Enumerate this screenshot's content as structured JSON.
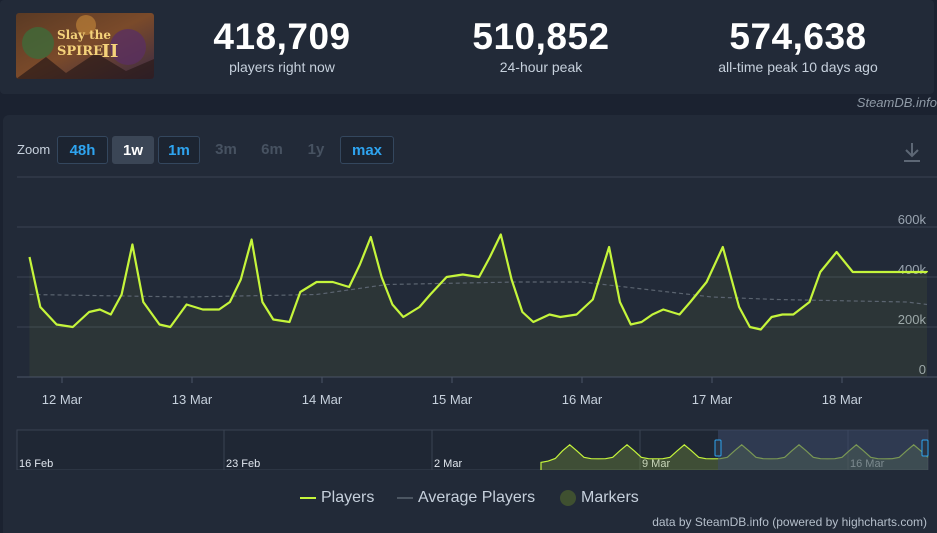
{
  "stats": [
    {
      "value": "418,709",
      "label": "players right now"
    },
    {
      "value": "510,852",
      "label": "24-hour peak"
    },
    {
      "value": "574,638",
      "label": "all-time peak 10 days ago"
    }
  ],
  "logo": {
    "line1": "Slay the",
    "line2": "SPIRE",
    "numeral": "II"
  },
  "source_credit": "SteamDB.info",
  "zoom": {
    "label": "Zoom",
    "buttons": [
      {
        "label": "48h",
        "state": "active"
      },
      {
        "label": "1w",
        "state": "selected"
      },
      {
        "label": "1m",
        "state": "active"
      },
      {
        "label": "3m",
        "state": "disabled"
      },
      {
        "label": "6m",
        "state": "disabled"
      },
      {
        "label": "1y",
        "state": "disabled"
      },
      {
        "label": "max",
        "state": "active"
      }
    ]
  },
  "download_icon": "download-icon",
  "legend": [
    {
      "label": "Players",
      "color": "#c5f53b"
    },
    {
      "label": "Average Players",
      "color": "#5b6470"
    },
    {
      "label": "Markers",
      "color": "#3f5030"
    }
  ],
  "footer_credit": "data by SteamDB.info (powered by highcharts.com)",
  "colors": {
    "players": "#c5f53b",
    "average": "#5b6470",
    "background": "#222a38",
    "navigator_selection": "#3c4a6a"
  },
  "chart_data": {
    "type": "line",
    "ylim": [
      0,
      600000
    ],
    "y_ticks": [
      "0",
      "200k",
      "400k",
      "600k"
    ],
    "x_ticks": [
      "12 Mar",
      "13 Mar",
      "14 Mar",
      "15 Mar",
      "16 Mar",
      "17 Mar",
      "18 Mar"
    ],
    "series": [
      {
        "name": "Players",
        "x": [
          "11 Mar 18:00",
          "11 Mar 20:00",
          "11 Mar 23:00",
          "12 Mar 02:00",
          "12 Mar 05:00",
          "12 Mar 07:00",
          "12 Mar 09:00",
          "12 Mar 11:00",
          "12 Mar 13:00",
          "12 Mar 15:00",
          "12 Mar 18:00",
          "12 Mar 20:00",
          "12 Mar 23:00",
          "13 Mar 02:00",
          "13 Mar 05:00",
          "13 Mar 07:00",
          "13 Mar 09:00",
          "13 Mar 11:00",
          "13 Mar 13:00",
          "13 Mar 15:00",
          "13 Mar 18:00",
          "13 Mar 20:00",
          "13 Mar 23:00",
          "14 Mar 02:00",
          "14 Mar 05:00",
          "14 Mar 07:00",
          "14 Mar 09:00",
          "14 Mar 11:00",
          "14 Mar 13:00",
          "14 Mar 15:00",
          "14 Mar 18:00",
          "14 Mar 20:00",
          "14 Mar 23:00",
          "15 Mar 02:00",
          "15 Mar 05:00",
          "15 Mar 07:00",
          "15 Mar 09:00",
          "15 Mar 11:00",
          "15 Mar 13:00",
          "15 Mar 15:00",
          "15 Mar 18:00",
          "15 Mar 20:00",
          "15 Mar 23:00",
          "16 Mar 02:00",
          "16 Mar 05:00",
          "16 Mar 07:00",
          "16 Mar 09:00",
          "16 Mar 11:00",
          "16 Mar 13:00",
          "16 Mar 15:00",
          "16 Mar 18:00",
          "16 Mar 20:00",
          "16 Mar 23:00",
          "17 Mar 02:00",
          "17 Mar 05:00",
          "17 Mar 07:00",
          "17 Mar 09:00",
          "17 Mar 11:00",
          "17 Mar 13:00",
          "17 Mar 15:00",
          "17 Mar 18:00",
          "17 Mar 20:00",
          "17 Mar 23:00",
          "18 Mar 02:00",
          "18 Mar 05:00",
          "18 Mar 07:00",
          "18 Mar 09:00",
          "18 Mar 11:00",
          "18 Mar 13:00",
          "18 Mar 15:00",
          "18 Mar 18:00",
          "18 Mar 20:00",
          "18 Mar 23:00"
        ],
        "values": [
          480000,
          280000,
          210000,
          200000,
          260000,
          270000,
          250000,
          330000,
          530000,
          300000,
          210000,
          200000,
          290000,
          270000,
          270000,
          300000,
          390000,
          550000,
          300000,
          230000,
          220000,
          340000,
          380000,
          380000,
          360000,
          450000,
          560000,
          400000,
          290000,
          240000,
          280000,
          330000,
          400000,
          410000,
          400000,
          480000,
          570000,
          390000,
          260000,
          220000,
          250000,
          240000,
          250000,
          310000,
          520000,
          300000,
          210000,
          220000,
          250000,
          270000,
          250000,
          300000,
          380000,
          520000,
          280000,
          200000,
          190000,
          240000,
          250000,
          250000,
          300000,
          420000,
          500000,
          420000,
          420000,
          420000,
          420000,
          420000,
          420000,
          420000,
          420000,
          420000,
          418709
        ]
      },
      {
        "name": "Average Players",
        "x": [
          "11 Mar 18:00",
          "12 Mar 23:00",
          "13 Mar 23:00",
          "14 Mar 12:00",
          "15 Mar 12:00",
          "16 Mar 00:00",
          "16 Mar 12:00",
          "17 Mar 00:00",
          "17 Mar 12:00",
          "18 Mar 12:00",
          "18 Mar 23:00"
        ],
        "values": [
          330000,
          320000,
          330000,
          370000,
          380000,
          380000,
          350000,
          320000,
          310000,
          300000,
          290000
        ]
      }
    ],
    "navigator": {
      "x_ticks": [
        "16 Feb",
        "23 Feb",
        "2 Mar",
        "9 Mar",
        "16 Mar"
      ],
      "selected_range": [
        "11 Mar",
        "18 Mar"
      ]
    }
  }
}
